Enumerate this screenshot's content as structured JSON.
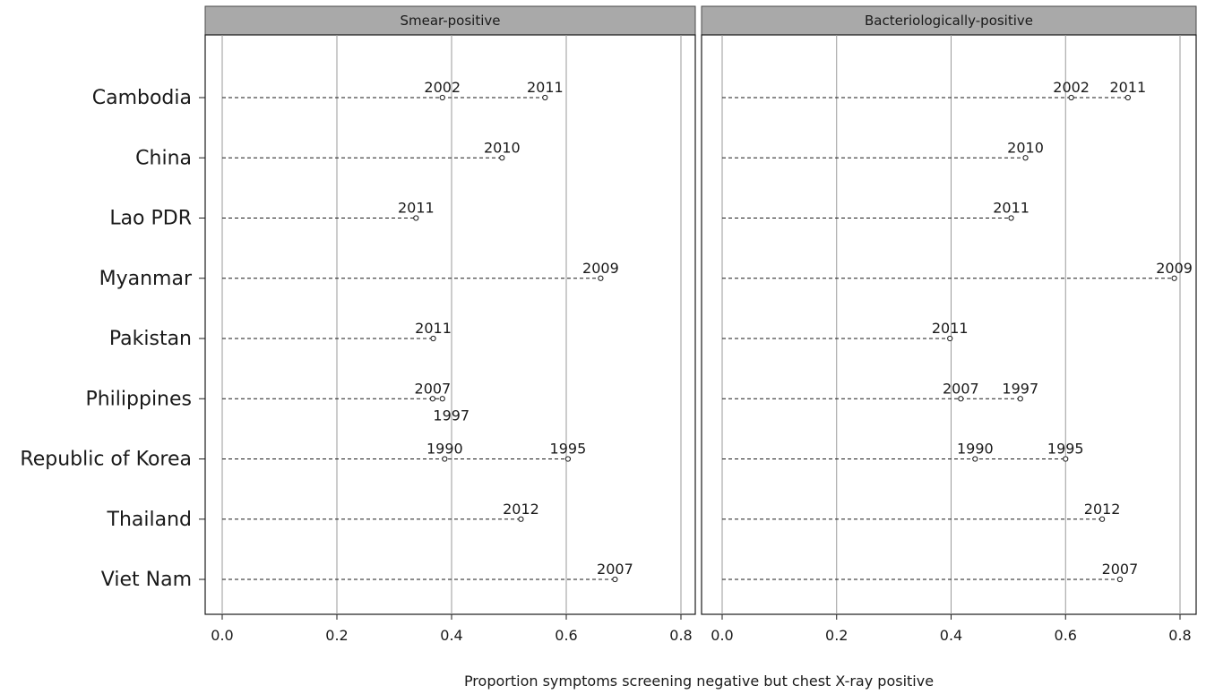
{
  "chart_data": {
    "type": "dot",
    "xlabel": "Proportion symptoms screening negative but chest X-ray positive",
    "xlim": [
      0,
      0.8
    ],
    "xticks": [
      "0.0",
      "0.2",
      "0.4",
      "0.6",
      "0.8"
    ],
    "grid": true,
    "categories": [
      "Cambodia",
      "China",
      "Lao PDR",
      "Myanmar",
      "Pakistan",
      "Philippines",
      "Republic of Korea",
      "Thailand",
      "Viet Nam"
    ],
    "panels": [
      {
        "title": "Smear-positive",
        "points": [
          {
            "category": "Cambodia",
            "year": "2002",
            "value": 0.384
          },
          {
            "category": "Cambodia",
            "year": "2011",
            "value": 0.563
          },
          {
            "category": "China",
            "year": "2010",
            "value": 0.488
          },
          {
            "category": "Lao PDR",
            "year": "2011",
            "value": 0.338
          },
          {
            "category": "Myanmar",
            "year": "2009",
            "value": 0.66
          },
          {
            "category": "Pakistan",
            "year": "2011",
            "value": 0.368
          },
          {
            "category": "Philippines",
            "year": "2007",
            "value": 0.367
          },
          {
            "category": "Philippines",
            "year": "1997",
            "value": 0.384
          },
          {
            "category": "Republic of Korea",
            "year": "1990",
            "value": 0.388
          },
          {
            "category": "Republic of Korea",
            "year": "1995",
            "value": 0.603
          },
          {
            "category": "Thailand",
            "year": "2012",
            "value": 0.521
          },
          {
            "category": "Viet Nam",
            "year": "2007",
            "value": 0.685
          }
        ]
      },
      {
        "title": "Bacteriologically-positive",
        "points": [
          {
            "category": "Cambodia",
            "year": "2002",
            "value": 0.61
          },
          {
            "category": "Cambodia",
            "year": "2011",
            "value": 0.709
          },
          {
            "category": "China",
            "year": "2010",
            "value": 0.53
          },
          {
            "category": "Lao PDR",
            "year": "2011",
            "value": 0.505
          },
          {
            "category": "Myanmar",
            "year": "2009",
            "value": 0.79
          },
          {
            "category": "Pakistan",
            "year": "2011",
            "value": 0.398
          },
          {
            "category": "Philippines",
            "year": "2007",
            "value": 0.417
          },
          {
            "category": "Philippines",
            "year": "1997",
            "value": 0.521
          },
          {
            "category": "Republic of Korea",
            "year": "1990",
            "value": 0.442
          },
          {
            "category": "Republic of Korea",
            "year": "1995",
            "value": 0.6
          },
          {
            "category": "Thailand",
            "year": "2012",
            "value": 0.664
          },
          {
            "category": "Viet Nam",
            "year": "2007",
            "value": 0.695
          }
        ]
      }
    ]
  }
}
